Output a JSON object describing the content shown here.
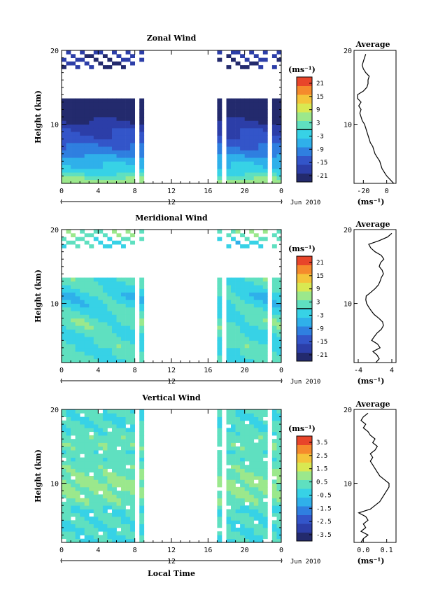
{
  "figure": {
    "xlabel": "Local Time",
    "date_label": "Jun 2010",
    "day_marker": "12",
    "ylabel": "Height (km)",
    "unit": "(ms⁻¹)",
    "avg_title": "Average"
  },
  "colorscale": [
    "#232a6d",
    "#2c3ea8",
    "#3355c9",
    "#2f7fe0",
    "#2fb0ea",
    "#37d2e6",
    "#5fe0c0",
    "#9be88c",
    "#d9e852",
    "#f4c43a",
    "#f58a2c",
    "#e8452a"
  ],
  "chart_data": [
    {
      "type": "heatmap",
      "title": "Zonal Wind",
      "x_ticks": [
        "0",
        "4",
        "8",
        "12",
        "16",
        "20",
        "0"
      ],
      "y_ticks": [
        "20",
        "10"
      ],
      "xlim": [
        0,
        24
      ],
      "ylim": [
        2,
        20
      ],
      "gap_hours": [
        [
          9,
          17
        ]
      ],
      "colorbar_ticks": [
        "21",
        "15",
        "9",
        "3",
        "-3",
        "-9",
        "-15",
        "-21"
      ],
      "colorbar_range": [
        -24,
        24
      ],
      "avg_x_ticks": [
        "-20",
        "0"
      ],
      "avg_xlim": [
        -28,
        8
      ],
      "average_profile": {
        "height": [
          2,
          2.5,
          3,
          3.5,
          4,
          4.5,
          5,
          5.5,
          6,
          6.5,
          7,
          7.5,
          8,
          8.5,
          9,
          9.5,
          10,
          10.5,
          11,
          11.5,
          12,
          12.5,
          13,
          13.5,
          14,
          14.5,
          15,
          15.5,
          16,
          16.5,
          17,
          17.5,
          18,
          18.5,
          19,
          19.5
        ],
        "value": [
          6,
          3,
          0,
          -2,
          -4,
          -5,
          -6,
          -8,
          -10,
          -11,
          -12,
          -14,
          -15,
          -16,
          -17,
          -18,
          -19,
          -21,
          -22,
          -23,
          -22,
          -24,
          -22,
          -25,
          -25,
          -20,
          -17,
          -16,
          -16,
          -15,
          -18,
          -20,
          -21,
          -20,
          -19,
          -18
        ]
      }
    },
    {
      "type": "heatmap",
      "title": "Meridional Wind",
      "x_ticks": [
        "0",
        "4",
        "8",
        "12",
        "16",
        "20",
        "0"
      ],
      "y_ticks": [
        "20",
        "10"
      ],
      "xlim": [
        0,
        24
      ],
      "ylim": [
        2,
        20
      ],
      "gap_hours": [
        [
          9,
          16.8
        ]
      ],
      "colorbar_ticks": [
        "21",
        "15",
        "9",
        "3",
        "-3",
        "-9",
        "-15",
        "-21"
      ],
      "colorbar_range": [
        -24,
        24
      ],
      "avg_x_ticks": [
        "-4",
        "4"
      ],
      "avg_xlim": [
        -5,
        5
      ],
      "average_profile": {
        "height": [
          2,
          2.5,
          3,
          3.5,
          4,
          4.5,
          5,
          5.5,
          6,
          6.5,
          7,
          7.5,
          8,
          8.5,
          9,
          9.5,
          10,
          10.5,
          11,
          11.5,
          12,
          12.5,
          13,
          13.5,
          14,
          14.5,
          15,
          15.5,
          16,
          16.5,
          17,
          17.5,
          18,
          18.5,
          19,
          19.5
        ],
        "value": [
          0.2,
          1.0,
          0.5,
          -0.5,
          1.2,
          0.6,
          -0.8,
          -0.2,
          0.5,
          1.5,
          2.0,
          1.8,
          0.9,
          -0.2,
          -0.9,
          -1.5,
          -2.0,
          -2.2,
          -2.1,
          -1.0,
          0.0,
          0.8,
          1.2,
          1.5,
          2.0,
          1.7,
          1.0,
          1.3,
          2.1,
          1.5,
          0.0,
          -1.0,
          -1.5,
          1.0,
          3.0,
          4.0
        ]
      }
    },
    {
      "type": "heatmap",
      "title": "Vertical Wind",
      "x_ticks": [
        "0",
        "4",
        "8",
        "12",
        "16",
        "20",
        "0"
      ],
      "y_ticks": [
        "20",
        "10"
      ],
      "xlim": [
        0,
        24
      ],
      "ylim": [
        2,
        20
      ],
      "gap_hours": [
        [
          9,
          16.8
        ]
      ],
      "colorbar_ticks": [
        "3.5",
        "2.5",
        "1.5",
        "0.5",
        "-0.5",
        "-1.5",
        "-2.5",
        "-3.5"
      ],
      "colorbar_range": [
        -4,
        4
      ],
      "avg_x_ticks": [
        "0.0",
        "0.1"
      ],
      "avg_xlim": [
        -0.04,
        0.14
      ],
      "average_profile": {
        "height": [
          2,
          2.5,
          3,
          3.5,
          4,
          4.5,
          5,
          5.5,
          6,
          6.5,
          7,
          7.5,
          8,
          8.5,
          9,
          9.5,
          10,
          10.5,
          11,
          11.5,
          12,
          12.5,
          13,
          13.5,
          14,
          14.5,
          15,
          15.5,
          16,
          16.5,
          17,
          17.5,
          18,
          18.5,
          19,
          19.5
        ],
        "value": [
          -0.01,
          0.0,
          0.02,
          -0.01,
          0.01,
          0.0,
          0.02,
          0.01,
          -0.02,
          0.03,
          0.05,
          0.07,
          0.08,
          0.09,
          0.1,
          0.11,
          0.11,
          0.09,
          0.07,
          0.06,
          0.05,
          0.04,
          0.03,
          0.04,
          0.03,
          0.05,
          0.06,
          0.04,
          0.05,
          0.03,
          0.02,
          0.0,
          0.01,
          -0.01,
          0.0,
          0.02
        ]
      }
    }
  ]
}
